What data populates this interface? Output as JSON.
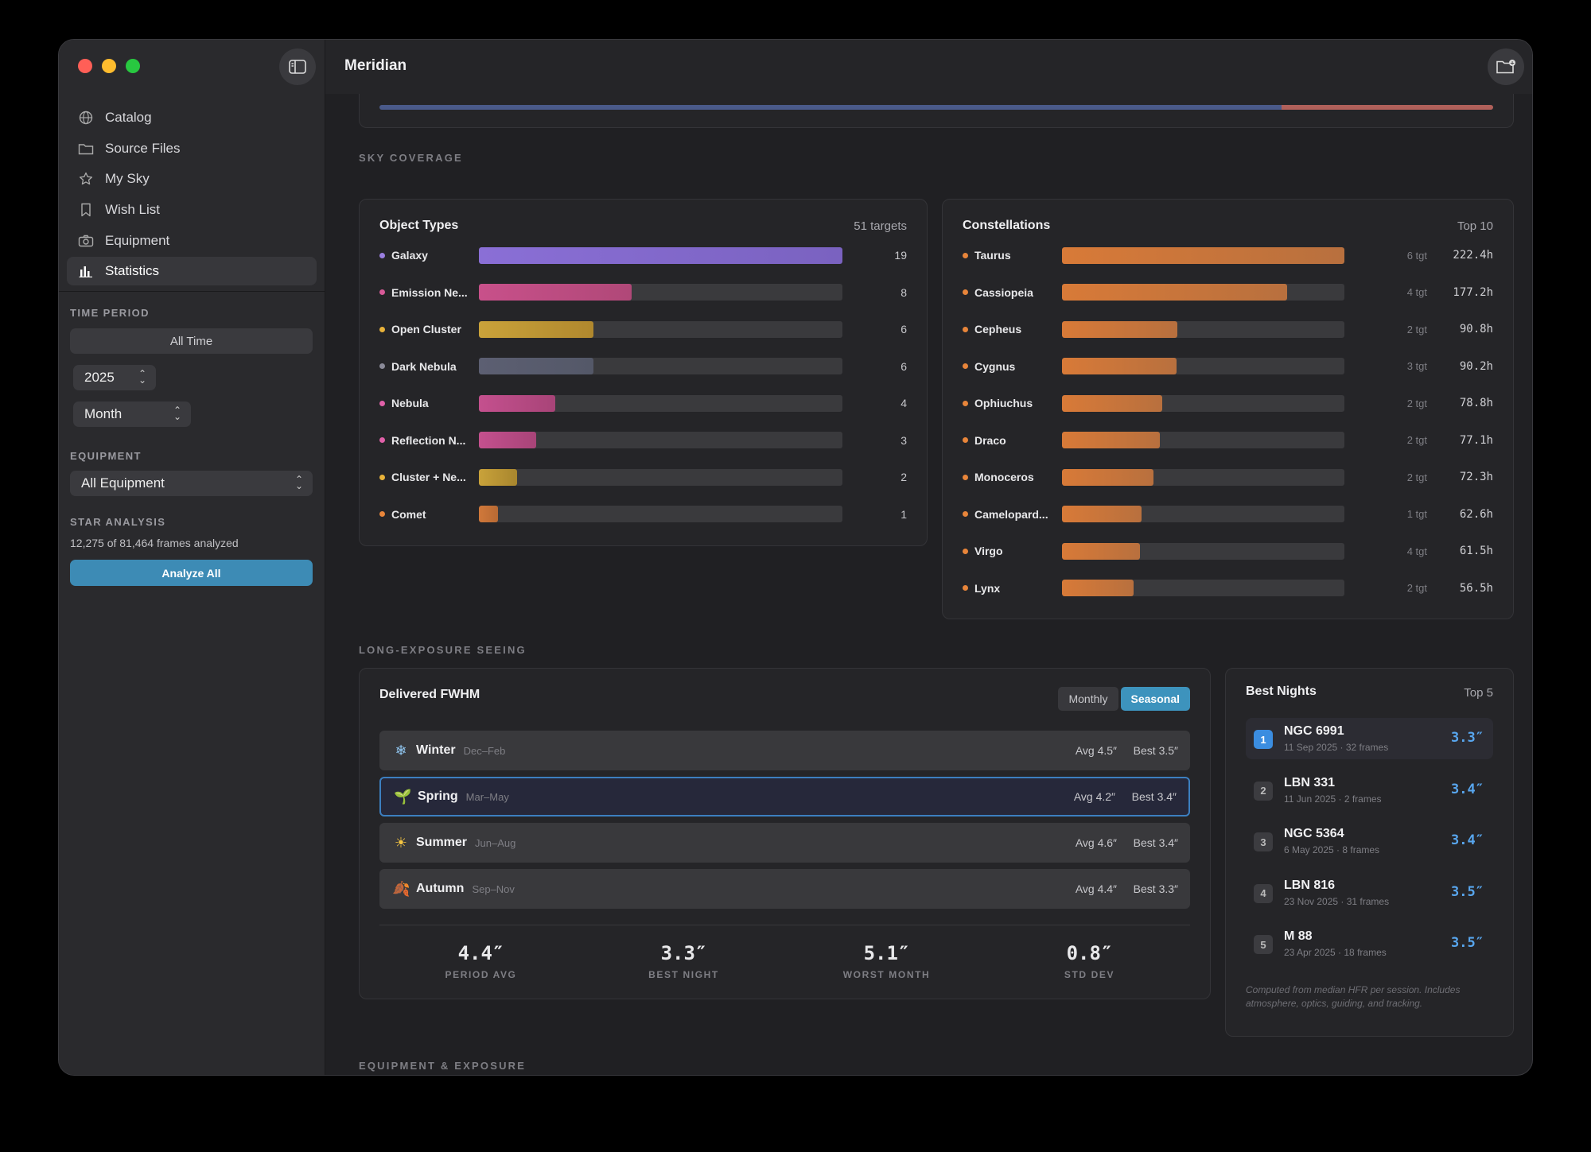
{
  "app": {
    "title": "Meridian"
  },
  "sidebar": {
    "items": [
      {
        "label": "Catalog",
        "icon": "globe-icon"
      },
      {
        "label": "Source Files",
        "icon": "folder-icon"
      },
      {
        "label": "My Sky",
        "icon": "star-icon"
      },
      {
        "label": "Wish List",
        "icon": "bookmark-icon"
      },
      {
        "label": "Equipment",
        "icon": "camera-icon"
      },
      {
        "label": "Statistics",
        "icon": "bar-chart-icon",
        "active": true
      }
    ],
    "time_period": {
      "label": "TIME PERIOD",
      "all_time": "All Time",
      "year": "2025",
      "granularity": "Month"
    },
    "equipment": {
      "label": "EQUIPMENT",
      "value": "All Equipment"
    },
    "star_analysis": {
      "label": "STAR ANALYSIS",
      "summary": "12,275 of 81,464 frames analyzed",
      "button": "Analyze All"
    }
  },
  "sections": {
    "sky_coverage": "SKY COVERAGE",
    "seeing": "LONG-EXPOSURE SEEING",
    "equipment_exposure": "EQUIPMENT & EXPOSURE"
  },
  "top_strip": {
    "segments": [
      {
        "fraction": 0.81,
        "color": "#4a5a8a"
      },
      {
        "fraction": 0.19,
        "color": "#b0605a"
      }
    ]
  },
  "object_types": {
    "title": "Object Types",
    "meta": "51 targets",
    "max": 19,
    "rows": [
      {
        "label": "Galaxy",
        "value": 19,
        "dot": "#9a7fe0",
        "fill": "linear-gradient(90deg,#8a6fd6,#7a62c0)"
      },
      {
        "label": "Emission Ne...",
        "value": 8,
        "dot": "#d85a98",
        "fill": "linear-gradient(90deg,#c8508a,#b04878)"
      },
      {
        "label": "Open Cluster",
        "value": 6,
        "dot": "#e8b23a",
        "fill": "linear-gradient(90deg,#c9a23a,#b0882e)"
      },
      {
        "label": "Dark Nebula",
        "value": 6,
        "dot": "#8a8a98",
        "fill": "linear-gradient(90deg,#5c5f72,#545868)"
      },
      {
        "label": "Nebula",
        "value": 4,
        "dot": "#e060a8",
        "fill": "linear-gradient(90deg,#c4508e,#a84478)"
      },
      {
        "label": "Reflection N...",
        "value": 3,
        "dot": "#e060a8",
        "fill": "linear-gradient(90deg,#c4508e,#a84478)"
      },
      {
        "label": "Cluster + Ne...",
        "value": 2,
        "dot": "#e8b23a",
        "fill": "linear-gradient(90deg,#c9a23a,#a8862e)"
      },
      {
        "label": "Comet",
        "value": 1,
        "dot": "#e8853a",
        "fill": "linear-gradient(90deg,#d0783a,#b86a34)"
      }
    ]
  },
  "constellations": {
    "title": "Constellations",
    "meta": "Top 10",
    "max": 222.4,
    "rows": [
      {
        "label": "Taurus",
        "targets": "6 tgt",
        "hours": 222.4,
        "hours_label": "222.4h"
      },
      {
        "label": "Cassiopeia",
        "targets": "4 tgt",
        "hours": 177.2,
        "hours_label": "177.2h"
      },
      {
        "label": "Cepheus",
        "targets": "2 tgt",
        "hours": 90.8,
        "hours_label": "90.8h"
      },
      {
        "label": "Cygnus",
        "targets": "3 tgt",
        "hours": 90.2,
        "hours_label": "90.2h"
      },
      {
        "label": "Ophiuchus",
        "targets": "2 tgt",
        "hours": 78.8,
        "hours_label": "78.8h"
      },
      {
        "label": "Draco",
        "targets": "2 tgt",
        "hours": 77.1,
        "hours_label": "77.1h"
      },
      {
        "label": "Monoceros",
        "targets": "2 tgt",
        "hours": 72.3,
        "hours_label": "72.3h"
      },
      {
        "label": "Camelopard...",
        "targets": "1 tgt",
        "hours": 62.6,
        "hours_label": "62.6h"
      },
      {
        "label": "Virgo",
        "targets": "4 tgt",
        "hours": 61.5,
        "hours_label": "61.5h"
      },
      {
        "label": "Lynx",
        "targets": "2 tgt",
        "hours": 56.5,
        "hours_label": "56.5h"
      }
    ],
    "color": "#e8853a"
  },
  "fwhm": {
    "title": "Delivered FWHM",
    "toggle": {
      "monthly": "Monthly",
      "seasonal": "Seasonal",
      "active": "seasonal"
    },
    "seasons": [
      {
        "name": "Winter",
        "range": "Dec–Feb",
        "avg": "Avg 4.5″",
        "best": "Best 3.5″",
        "icon": "snowflake-icon",
        "glyph": "❄",
        "color": "#8fc4ee"
      },
      {
        "name": "Spring",
        "range": "Mar–May",
        "avg": "Avg 4.2″",
        "best": "Best 3.4″",
        "icon": "seedling-icon",
        "glyph": "🌱",
        "color": "#6ec46a",
        "selected": true
      },
      {
        "name": "Summer",
        "range": "Jun–Aug",
        "avg": "Avg 4.6″",
        "best": "Best 3.4″",
        "icon": "sun-icon",
        "glyph": "☀",
        "color": "#f5c542"
      },
      {
        "name": "Autumn",
        "range": "Sep–Nov",
        "avg": "Avg 4.4″",
        "best": "Best 3.3″",
        "icon": "leaf-icon",
        "glyph": "🍂",
        "color": "#d0743a"
      }
    ],
    "stats": [
      {
        "value": "4.4″",
        "label": "PERIOD AVG"
      },
      {
        "value": "3.3″",
        "label": "BEST NIGHT"
      },
      {
        "value": "5.1″",
        "label": "WORST MONTH"
      },
      {
        "value": "0.8″",
        "label": "STD DEV"
      }
    ]
  },
  "best_nights": {
    "title": "Best Nights",
    "meta": "Top 5",
    "rows": [
      {
        "rank": "1",
        "name": "NGC 6991",
        "sub": "11 Sep 2025 · 32 frames",
        "value": "3.3″"
      },
      {
        "rank": "2",
        "name": "LBN 331",
        "sub": "11 Jun 2025 · 2 frames",
        "value": "3.4″"
      },
      {
        "rank": "3",
        "name": "NGC 5364",
        "sub": "6 May 2025 · 8 frames",
        "value": "3.4″"
      },
      {
        "rank": "4",
        "name": "LBN 816",
        "sub": "23 Nov 2025 · 31 frames",
        "value": "3.5″"
      },
      {
        "rank": "5",
        "name": "M 88",
        "sub": "23 Apr 2025 · 18 frames",
        "value": "3.5″"
      }
    ],
    "footnote": "Computed from median HFR per session. Includes atmosphere, optics, guiding, and tracking."
  }
}
